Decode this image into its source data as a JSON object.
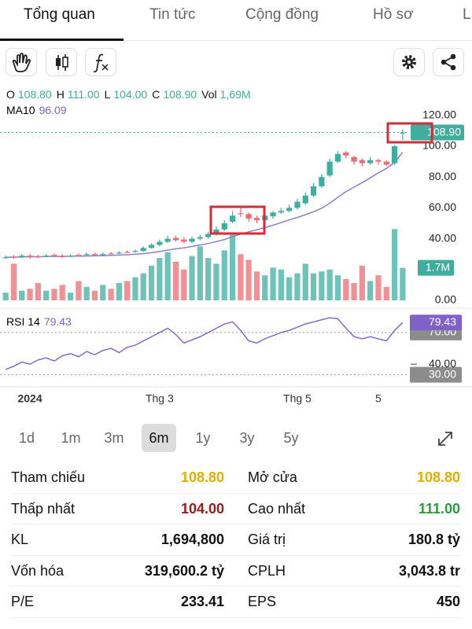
{
  "tabs": [
    "Tổng quan",
    "Tin tức",
    "Cộng đồng",
    "Hồ sơ",
    "L"
  ],
  "active_tab": 0,
  "quote": {
    "fields": [
      {
        "label": "O",
        "value": "108.80"
      },
      {
        "label": "H",
        "value": "111.00"
      },
      {
        "label": "L",
        "value": "104.00"
      },
      {
        "label": "C",
        "value": "108.90"
      },
      {
        "label": "Vol",
        "value": "1,69M"
      }
    ],
    "ma_value": "96.09"
  },
  "chart_data": {
    "type": "candlestick",
    "categories": [
      null,
      null,
      null,
      "2024",
      null,
      null,
      null,
      null,
      null,
      null,
      null,
      null,
      null,
      null,
      null,
      null,
      null,
      null,
      null,
      "Thg 3",
      null,
      null,
      null,
      null,
      null,
      null,
      null,
      null,
      null,
      null,
      null,
      null,
      null,
      null,
      null,
      null,
      "Thg 5",
      null,
      null,
      null,
      null,
      null,
      null,
      null,
      null,
      null,
      "5",
      null,
      null,
      null
    ],
    "open": [
      27.5,
      28.5,
      28,
      29,
      28.5,
      28.5,
      29.5,
      29,
      28.5,
      29.5,
      29.5,
      30,
      29.5,
      30.5,
      30.5,
      31.5,
      31.5,
      32,
      34,
      36,
      38,
      40.5,
      39.5,
      38,
      40,
      41,
      43,
      46,
      51,
      56.5,
      56,
      53.5,
      52,
      54.5,
      57,
      58,
      60,
      63,
      68,
      74,
      81,
      90,
      96,
      93,
      91,
      89,
      91,
      90,
      89,
      108.8
    ],
    "high": [
      29,
      29.5,
      30,
      30,
      29.5,
      30,
      30.5,
      30,
      30,
      30.5,
      31,
      31,
      31,
      31.5,
      32,
      32.5,
      33,
      35,
      37,
      39.5,
      42,
      42,
      41,
      41.5,
      42.5,
      44.5,
      48,
      52,
      58,
      60,
      57,
      55,
      56,
      58,
      60,
      62,
      66,
      70,
      76,
      82,
      92,
      97,
      97,
      94,
      92,
      93,
      92,
      91,
      101,
      111
    ],
    "low": [
      27,
      27,
      27.5,
      27,
      27.5,
      28,
      28,
      27.5,
      28,
      28.5,
      29,
      28.5,
      29,
      29.5,
      30,
      30.5,
      31,
      31.5,
      33.5,
      35,
      37,
      38,
      37,
      37,
      39,
      40,
      42,
      45,
      50,
      54,
      51,
      50,
      51,
      53,
      56,
      57,
      59,
      62,
      67,
      73,
      80,
      89,
      92,
      88,
      87,
      88,
      88,
      87,
      88,
      104
    ],
    "close": [
      28,
      28,
      29,
      28,
      28,
      29,
      29,
      28,
      29,
      29,
      30,
      29,
      30,
      30,
      31,
      31,
      32,
      34,
      36,
      38,
      40,
      39,
      38,
      40,
      41,
      43,
      46,
      50,
      55,
      56,
      53,
      52,
      55,
      57,
      58,
      60,
      64,
      68,
      74,
      80,
      90,
      95,
      94,
      90,
      89,
      91,
      90,
      88,
      100,
      108.9
    ],
    "up_color": "#3fae9f",
    "down_color": "#ef6b73",
    "ylim": [
      0,
      125
    ],
    "yticks": [
      {
        "value": 0,
        "label": "0.00"
      },
      {
        "value": 40,
        "label": "40.00"
      },
      {
        "value": 60,
        "label": "60.00"
      },
      {
        "value": 80,
        "label": "80.00"
      },
      {
        "value": 100,
        "label": "100.00"
      },
      {
        "value": 120,
        "label": "120.00"
      }
    ],
    "last_price": {
      "value": 108.9,
      "label": "108.90"
    },
    "ma": {
      "name": "MA10",
      "color": "#8c7fd0",
      "values": [
        28,
        28,
        28.2,
        28.3,
        28.3,
        28.4,
        28.5,
        28.5,
        28.6,
        28.7,
        28.8,
        28.9,
        29,
        29.2,
        29.4,
        29.6,
        29.9,
        30.3,
        30.9,
        31.7,
        32.6,
        33.4,
        34.1,
        35,
        35.9,
        36.9,
        38.1,
        39.5,
        41.2,
        43.1,
        44.5,
        45.8,
        47.2,
        48.8,
        50.5,
        52.2,
        53.8,
        55.6,
        57.5,
        59.8,
        63,
        66.9,
        70.5,
        73.5,
        76.4,
        79.5,
        82.7,
        85.6,
        89.6,
        96.09
      ]
    },
    "volume": {
      "values": [
        0.4,
        1.9,
        0.5,
        0.6,
        0.9,
        0.5,
        0.6,
        0.8,
        0.4,
        1.0,
        0.7,
        0.5,
        0.8,
        0.6,
        0.9,
        1.0,
        1.2,
        1.4,
        1.8,
        2.2,
        2.5,
        2.0,
        1.6,
        2.3,
        2.8,
        2.2,
        1.9,
        2.6,
        3.4,
        2.4,
        2.1,
        1.5,
        1.3,
        1.7,
        1.6,
        1.2,
        1.4,
        1.9,
        1.4,
        1.5,
        1.6,
        1.3,
        1.1,
        0.9,
        1.8,
        1.0,
        1.3,
        0.7,
        3.7,
        1.69
      ],
      "ylim": [
        0,
        10
      ],
      "marker": {
        "value": 1.69,
        "label": "1.7M"
      }
    },
    "rsi": {
      "name": "RSI 14",
      "color": "#7e62c9",
      "values": [
        35,
        38,
        42,
        40,
        44,
        46,
        43,
        48,
        50,
        47,
        52,
        49,
        53,
        55,
        51,
        56,
        58,
        62,
        66,
        70,
        74,
        68,
        60,
        63,
        66,
        70,
        74,
        78,
        80,
        72,
        62,
        60,
        64,
        67,
        70,
        72,
        75,
        78,
        80,
        82,
        84,
        83,
        74,
        66,
        64,
        66,
        64,
        62,
        72,
        79.43
      ],
      "ylim": [
        20,
        90
      ],
      "yticks": [
        {
          "value": 30,
          "label": "30.00"
        },
        {
          "value": 40,
          "label": "40.00"
        },
        {
          "value": 70,
          "label": "70.00"
        }
      ],
      "last": {
        "value": 79.43,
        "label": "79.43"
      }
    }
  },
  "ranges": [
    "1d",
    "1m",
    "3m",
    "6m",
    "1y",
    "3y",
    "5y"
  ],
  "selected_range": 3,
  "stats": {
    "rows": [
      [
        {
          "label": "Tham chiếu",
          "value": "108.80",
          "color": "#e0b000"
        },
        {
          "label": "Mở cửa",
          "value": "108.80",
          "color": "#e0b000"
        }
      ],
      [
        {
          "label": "Thấp nhất",
          "value": "104.00",
          "color": "#9b1b1b"
        },
        {
          "label": "Cao nhất",
          "value": "111.00",
          "color": "#2a9d3a"
        }
      ],
      [
        {
          "label": "KL",
          "value": "1,694,800",
          "color": "#111111"
        },
        {
          "label": "Giá trị",
          "value": "180.8 tỷ",
          "color": "#111111"
        }
      ],
      [
        {
          "label": "Vốn hóa",
          "value": "319,600.2 tỷ",
          "color": "#111111"
        },
        {
          "label": "CPLH",
          "value": "3,043.8 tr",
          "color": "#111111"
        }
      ],
      [
        {
          "label": "P/E",
          "value": "233.41",
          "color": "#111111"
        },
        {
          "label": "EPS",
          "value": "450",
          "color": "#111111"
        }
      ]
    ]
  }
}
